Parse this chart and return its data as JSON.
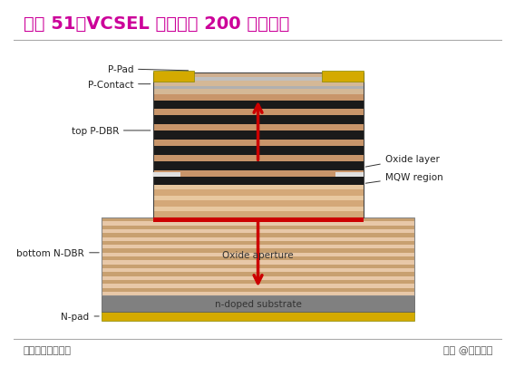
{
  "title": "图表 51：VCSEL 拥有大概 200 层外延层",
  "title_color": "#cc0099",
  "title_fontsize": 14,
  "footer_left": "资料来源：光电汇",
  "footer_right": "头条 @未来智库",
  "bg_color": "#ffffff"
}
